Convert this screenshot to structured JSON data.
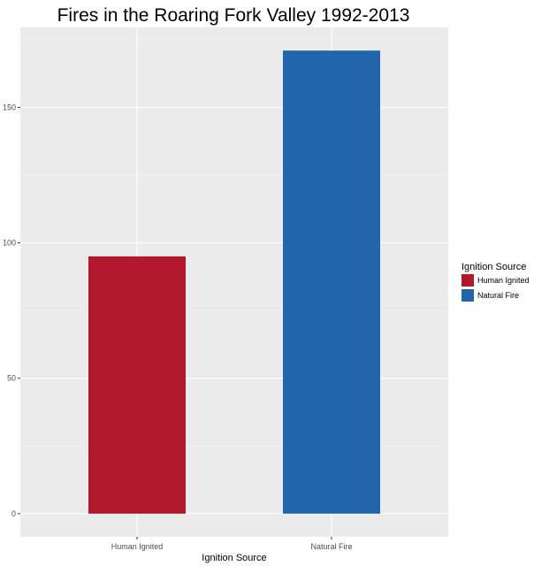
{
  "chart_data": {
    "type": "bar",
    "title": "Fires in the Roaring Fork Valley 1992-2013",
    "xlabel": "Ignition Source",
    "ylabel": "",
    "categories": [
      "Human Ignited",
      "Natural Fire"
    ],
    "values": [
      95,
      171
    ],
    "ylim": [
      -8.55,
      179.55
    ],
    "yticks": [
      0,
      50,
      100,
      150
    ],
    "grid": true,
    "colors": [
      "#B2182B",
      "#2166AC"
    ],
    "panel_color": "#EBEBEB",
    "legend": {
      "title": "Ignition Source",
      "placement": "right",
      "entries": [
        "Human Ignited",
        "Natural Fire"
      ]
    }
  }
}
